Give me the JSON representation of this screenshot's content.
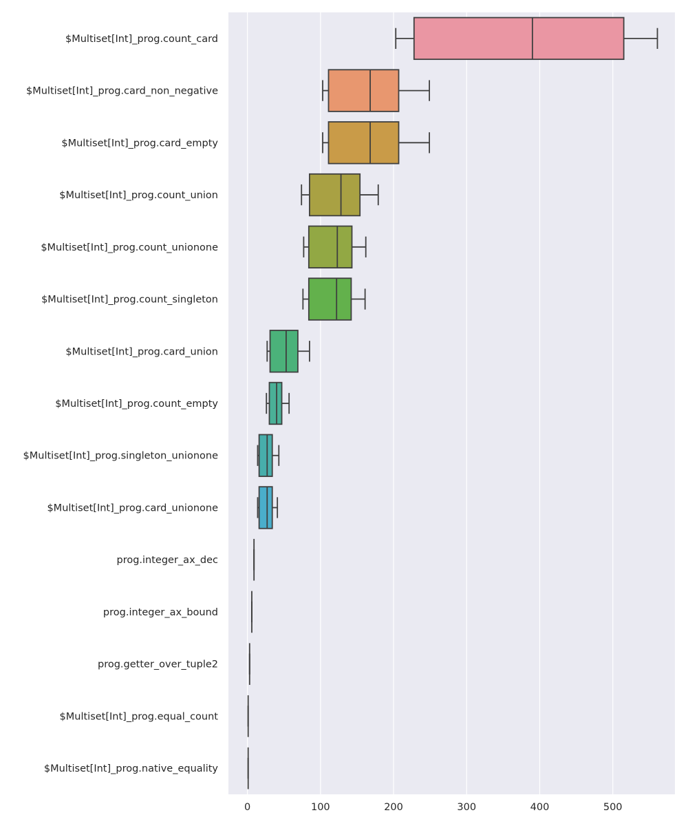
{
  "chart_data": {
    "type": "box",
    "orientation": "horizontal",
    "grid": true,
    "xlim": [
      -26,
      585
    ],
    "xticks": [
      0,
      100,
      200,
      300,
      400,
      500
    ],
    "xlabel": "",
    "ylabel": "",
    "categories": [
      "$Multiset[Int]_prog.count_card",
      "$Multiset[Int]_prog.card_non_negative",
      "$Multiset[Int]_prog.card_empty",
      "$Multiset[Int]_prog.count_union",
      "$Multiset[Int]_prog.count_unionone",
      "$Multiset[Int]_prog.count_singleton",
      "$Multiset[Int]_prog.card_union",
      "$Multiset[Int]_prog.count_empty",
      "$Multiset[Int]_prog.singleton_unionone",
      "$Multiset[Int]_prog.card_unionone",
      "prog.integer_ax_dec",
      "prog.integer_ax_bound",
      "prog.getter_over_tuple2",
      "$Multiset[Int]_prog.equal_count",
      "$Multiset[Int]_prog.native_equality"
    ],
    "boxes": [
      {
        "whislo": 203,
        "q1": 228,
        "med": 390,
        "q3": 515,
        "whishi": 561,
        "color": "#ea96a3"
      },
      {
        "whislo": 103,
        "q1": 111,
        "med": 168,
        "q3": 207,
        "whishi": 249,
        "color": "#e8976f"
      },
      {
        "whislo": 103,
        "q1": 111,
        "med": 168,
        "q3": 207,
        "whishi": 249,
        "color": "#c99b48"
      },
      {
        "whislo": 74,
        "q1": 85,
        "med": 128,
        "q3": 154,
        "whishi": 179,
        "color": "#a9a143"
      },
      {
        "whislo": 77,
        "q1": 84,
        "med": 123,
        "q3": 143,
        "whishi": 162,
        "color": "#92a844"
      },
      {
        "whislo": 76,
        "q1": 84,
        "med": 122,
        "q3": 142,
        "whishi": 161,
        "color": "#63b14c"
      },
      {
        "whislo": 27,
        "q1": 31,
        "med": 53,
        "q3": 69,
        "whishi": 85,
        "color": "#4bb27a"
      },
      {
        "whislo": 26,
        "q1": 30,
        "med": 40,
        "q3": 47,
        "whishi": 57,
        "color": "#4ab097"
      },
      {
        "whislo": 14,
        "q1": 16,
        "med": 27,
        "q3": 34,
        "whishi": 43,
        "color": "#47aeab"
      },
      {
        "whislo": 14,
        "q1": 16,
        "med": 27,
        "q3": 34,
        "whishi": 41,
        "color": "#4aaecb"
      },
      {
        "whislo": 9,
        "q1": 9,
        "med": 9,
        "q3": 9,
        "whishi": 9,
        "color": "#5aa7d8"
      },
      {
        "whislo": 6,
        "q1": 6,
        "med": 6,
        "q3": 6,
        "whishi": 6,
        "color": "#7da0e0"
      },
      {
        "whislo": 3,
        "q1": 3,
        "med": 3,
        "q3": 3,
        "whishi": 3,
        "color": "#a596e0"
      },
      {
        "whislo": 1,
        "q1": 1,
        "med": 1,
        "q3": 1,
        "whishi": 1,
        "color": "#c989dc"
      },
      {
        "whislo": 1,
        "q1": 1,
        "med": 1,
        "q3": 1,
        "whishi": 1,
        "color": "#e88fc9"
      }
    ],
    "colors": {
      "background": "#eaeaf2",
      "grid": "#ffffff",
      "box_edge": "#3f3f3f",
      "text": "#262626"
    }
  }
}
